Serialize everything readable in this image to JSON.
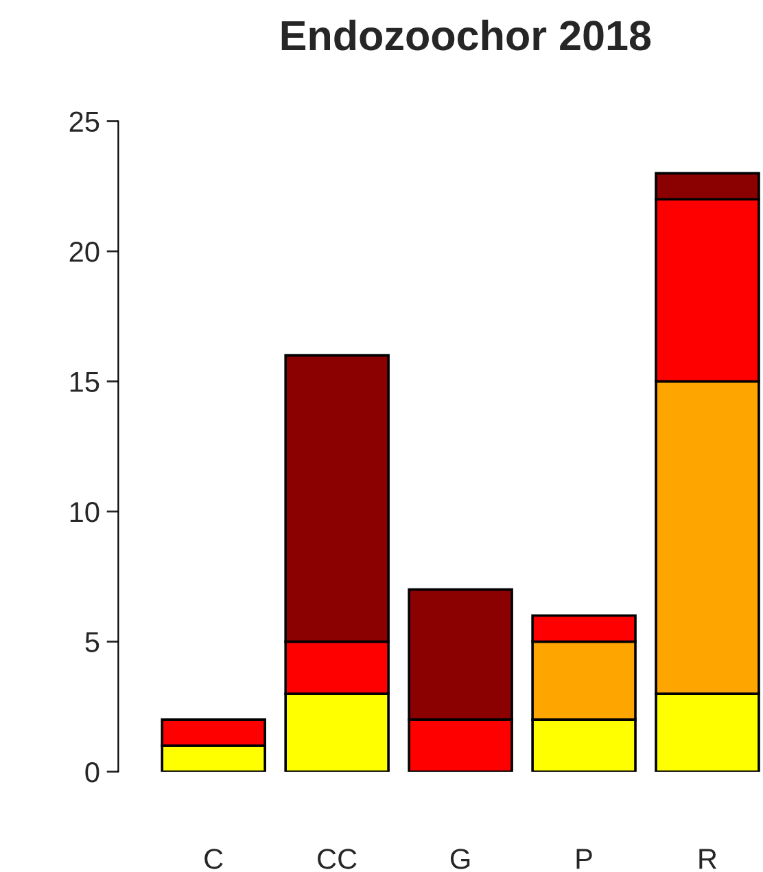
{
  "chart_data": {
    "type": "bar",
    "title": "Endozoochor 2018",
    "stacked": true,
    "categories": [
      "C",
      "CC",
      "G",
      "P",
      "R"
    ],
    "series": [
      {
        "color": "#ffff00",
        "values": [
          1,
          3,
          null,
          2,
          3
        ]
      },
      {
        "color": "#ffa500",
        "values": [
          null,
          null,
          null,
          3,
          12
        ]
      },
      {
        "color": "#ff0000",
        "values": [
          1,
          2,
          2,
          1,
          7
        ]
      },
      {
        "color": "#8b0000",
        "values": [
          null,
          11,
          5,
          null,
          1
        ]
      }
    ],
    "ylim": [
      0,
      25
    ],
    "yticks": [
      0,
      5,
      10,
      15,
      20,
      25
    ],
    "grid": false,
    "legend": false
  }
}
